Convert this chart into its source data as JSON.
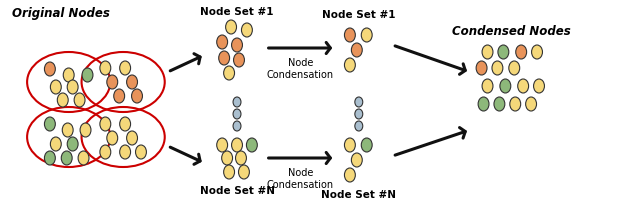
{
  "bg_color": "#ffffff",
  "node_colors": {
    "yellow": "#F5D87A",
    "orange": "#E8935A",
    "green": "#8DB87A",
    "blue_dot": "#AABFCF"
  },
  "circle_color": "#CC0000",
  "arrow_color": "#111111",
  "title_fontsize": 8.5,
  "label_fontsize": 7.5,
  "fig_width": 6.4,
  "fig_height": 2.2,
  "orig_label": "Original Nodes",
  "set1_label1": "Node Set #1",
  "set1_label2": "Node Set #1",
  "setN_label1": "Node Set #N",
  "setN_label2": "Node Set #N",
  "condensed_label": "Condensed Nodes",
  "node_cond_top": "Node\nCondensation",
  "node_cond_bot": "Node\nCondensation"
}
